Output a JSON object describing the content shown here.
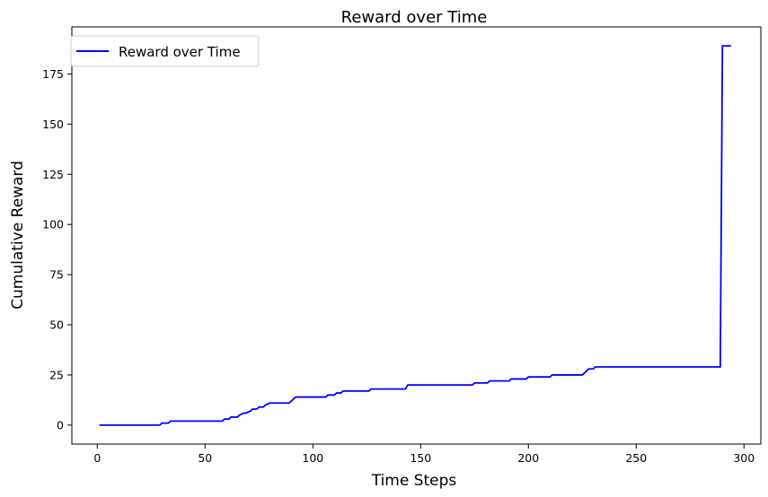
{
  "chart_data": {
    "type": "line",
    "title": "Reward over Time",
    "xlabel": "Time Steps",
    "ylabel": "Cumulative Reward",
    "xlim": [
      -11.8,
      307.8
    ],
    "ylim": [
      -9.45,
      198.45
    ],
    "xticks": [
      0,
      50,
      100,
      150,
      200,
      250,
      300
    ],
    "yticks": [
      0,
      25,
      50,
      75,
      100,
      125,
      150,
      175
    ],
    "grid": false,
    "legend_position": "top-left",
    "series": [
      {
        "name": "Reward over Time",
        "color": "#0000ff",
        "x": [
          1,
          29,
          30,
          33,
          34,
          58,
          59,
          61,
          62,
          65,
          66,
          68,
          69,
          71,
          72,
          74,
          75,
          77,
          78,
          80,
          81,
          89,
          92,
          106,
          107,
          110,
          111,
          113,
          114,
          126,
          127,
          143,
          144,
          174,
          175,
          181,
          182,
          191,
          192,
          199,
          200,
          210,
          211,
          225,
          227,
          228,
          230,
          231,
          289,
          290,
          294
        ],
        "y": [
          0,
          0,
          1,
          1,
          2,
          2,
          3,
          3,
          4,
          4,
          5,
          6,
          6,
          7,
          8,
          8,
          9,
          9,
          10,
          11,
          11,
          11,
          14,
          14,
          15,
          15,
          16,
          16,
          17,
          17,
          18,
          18,
          20,
          20,
          21,
          21,
          22,
          22,
          23,
          23,
          24,
          24,
          25,
          25,
          27,
          28,
          28,
          29,
          29,
          189,
          189
        ]
      }
    ]
  }
}
